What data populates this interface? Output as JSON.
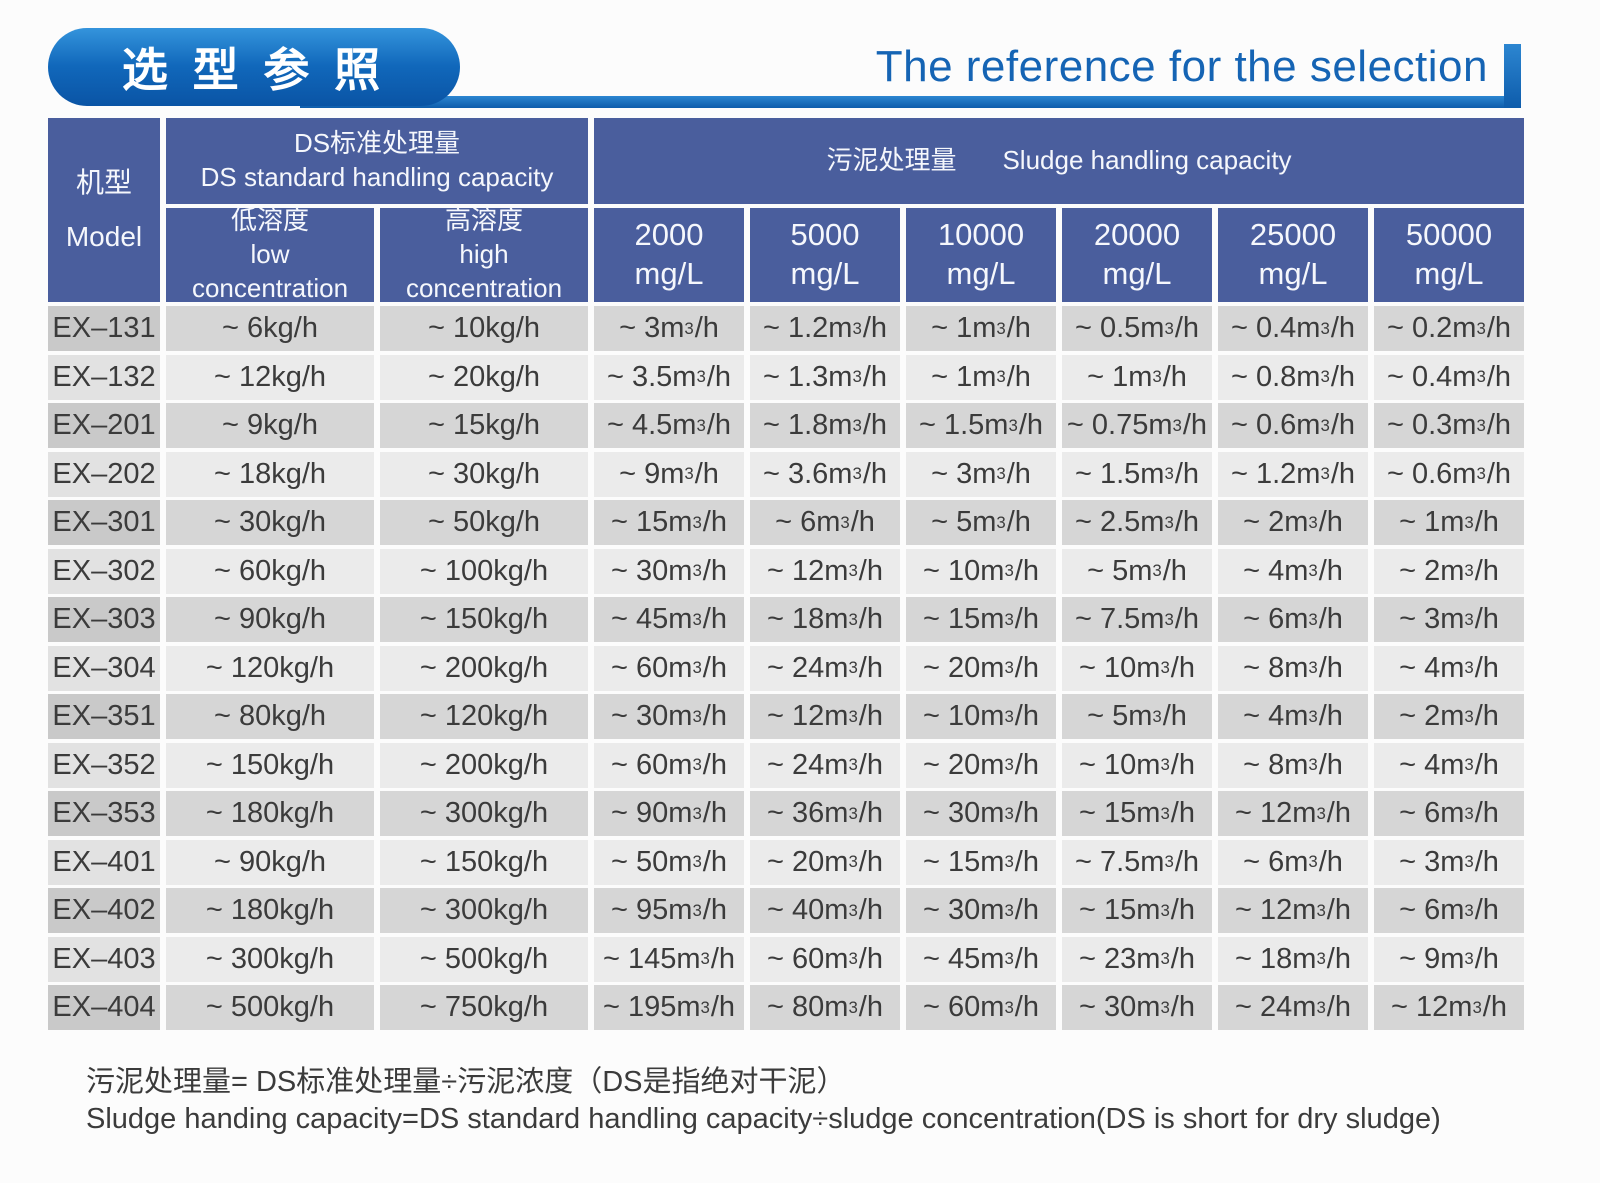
{
  "page": {
    "title_cn": "选 型 参 照",
    "title_en": "The reference for the selection"
  },
  "colors": {
    "brand_blue": "#1168bb",
    "table_header_blue": "#4a5e9d",
    "title_text_blue": "#1564b4",
    "row_dark": "#d6d6d6",
    "row_light": "#ebebeb"
  },
  "table": {
    "header": {
      "model_cn": "机型",
      "model_en": "Model",
      "ds_group_cn": "DS标准处理量",
      "ds_group_en": "DS standard handling capacity",
      "sludge_group_cn": "污泥处理量",
      "sludge_group_en": "Sludge handling capacity",
      "low_cn": "低溶度",
      "low_en": "low\nconcentration",
      "high_cn": "高溶度",
      "high_en": "high\nconcentration",
      "mgl_columns": [
        {
          "label": "2000\nmg/L"
        },
        {
          "label": "5000\nmg/L"
        },
        {
          "label": "10000\nmg/L"
        },
        {
          "label": "20000\nmg/L"
        },
        {
          "label": "25000\nmg/L"
        },
        {
          "label": "50000\nmg/L"
        }
      ]
    },
    "rows": [
      {
        "model": "EX–131",
        "values": [
          "~ 6kg/h",
          "~ 10kg/h",
          "~ 3m³/h",
          "~ 1.2m³/h",
          "~ 1m³/h",
          "~ 0.5m³/h",
          "~ 0.4m³/h",
          "~ 0.2m³/h"
        ]
      },
      {
        "model": "EX–132",
        "values": [
          "~ 12kg/h",
          "~ 20kg/h",
          "~ 3.5m³/h",
          "~ 1.3m³/h",
          "~ 1m³/h",
          "~ 1m³/h",
          "~ 0.8m³/h",
          "~ 0.4m³/h"
        ]
      },
      {
        "model": "EX–201",
        "values": [
          "~ 9kg/h",
          "~ 15kg/h",
          "~ 4.5m³/h",
          "~ 1.8m³/h",
          "~ 1.5m³/h",
          "~ 0.75m³/h",
          "~ 0.6m³/h",
          "~ 0.3m³/h"
        ]
      },
      {
        "model": "EX–202",
        "values": [
          "~ 18kg/h",
          "~ 30kg/h",
          "~ 9m³/h",
          "~ 3.6m³/h",
          "~ 3m³/h",
          "~ 1.5m³/h",
          "~ 1.2m³/h",
          "~ 0.6m³/h"
        ]
      },
      {
        "model": "EX–301",
        "values": [
          "~ 30kg/h",
          "~ 50kg/h",
          "~ 15m³/h",
          "~ 6m³/h",
          "~ 5m³/h",
          "~ 2.5m³/h",
          "~ 2m³/h",
          "~ 1m³/h"
        ]
      },
      {
        "model": "EX–302",
        "values": [
          "~ 60kg/h",
          "~ 100kg/h",
          "~ 30m³/h",
          "~ 12m³/h",
          "~ 10m³/h",
          "~ 5m³/h",
          "~ 4m³/h",
          "~ 2m³/h"
        ]
      },
      {
        "model": "EX–303",
        "values": [
          "~ 90kg/h",
          "~ 150kg/h",
          "~ 45m³/h",
          "~ 18m³/h",
          "~ 15m³/h",
          "~ 7.5m³/h",
          "~ 6m³/h",
          "~ 3m³/h"
        ]
      },
      {
        "model": "EX–304",
        "values": [
          "~ 120kg/h",
          "~ 200kg/h",
          "~ 60m³/h",
          "~ 24m³/h",
          "~ 20m³/h",
          "~ 10m³/h",
          "~ 8m³/h",
          "~ 4m³/h"
        ]
      },
      {
        "model": "EX–351",
        "values": [
          "~ 80kg/h",
          "~ 120kg/h",
          "~ 30m³/h",
          "~ 12m³/h",
          "~ 10m³/h",
          "~ 5m³/h",
          "~ 4m³/h",
          "~ 2m³/h"
        ]
      },
      {
        "model": "EX–352",
        "values": [
          "~ 150kg/h",
          "~ 200kg/h",
          "~ 60m³/h",
          "~ 24m³/h",
          "~ 20m³/h",
          "~ 10m³/h",
          "~ 8m³/h",
          "~ 4m³/h"
        ]
      },
      {
        "model": "EX–353",
        "values": [
          "~ 180kg/h",
          "~ 300kg/h",
          "~ 90m³/h",
          "~ 36m³/h",
          "~ 30m³/h",
          "~ 15m³/h",
          "~ 12m³/h",
          "~ 6m³/h"
        ]
      },
      {
        "model": "EX–401",
        "values": [
          "~ 90kg/h",
          "~ 150kg/h",
          "~ 50m³/h",
          "~ 20m³/h",
          "~ 15m³/h",
          "~ 7.5m³/h",
          "~ 6m³/h",
          "~ 3m³/h"
        ]
      },
      {
        "model": "EX–402",
        "values": [
          "~ 180kg/h",
          "~ 300kg/h",
          "~ 95m³/h",
          "~ 40m³/h",
          "~ 30m³/h",
          "~ 15m³/h",
          "~ 12m³/h",
          "~ 6m³/h"
        ]
      },
      {
        "model": "EX–403",
        "values": [
          "~ 300kg/h",
          "~ 500kg/h",
          "~ 145m³/h",
          "~ 60m³/h",
          "~ 45m³/h",
          "~ 23m³/h",
          "~ 18m³/h",
          "~ 9m³/h"
        ]
      },
      {
        "model": "EX–404",
        "values": [
          "~ 500kg/h",
          "~ 750kg/h",
          "~ 195m³/h",
          "~ 80m³/h",
          "~ 60m³/h",
          "~ 30m³/h",
          "~ 24m³/h",
          "~ 12m³/h"
        ]
      }
    ]
  },
  "footnote": {
    "line_cn": "污泥处理量= DS标准处理量÷污泥浓度（DS是指绝对干泥）",
    "line_en": "Sludge handing capacity=DS standard handling capacity÷sludge concentration(DS is short for dry sludge)"
  }
}
